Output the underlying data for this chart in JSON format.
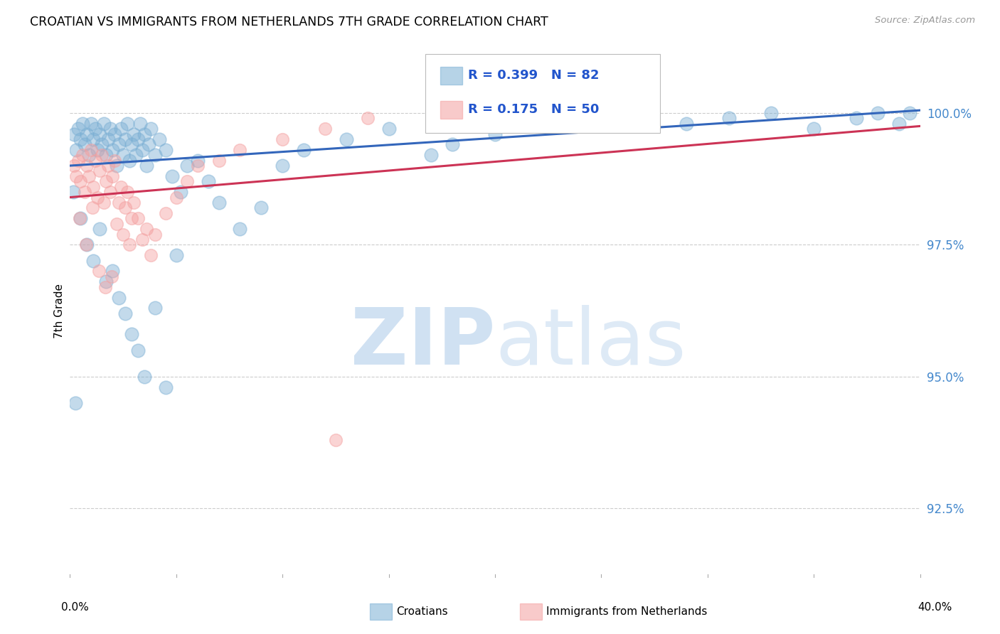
{
  "title": "CROATIAN VS IMMIGRANTS FROM NETHERLANDS 7TH GRADE CORRELATION CHART",
  "source": "Source: ZipAtlas.com",
  "ylabel": "7th Grade",
  "yticks": [
    92.5,
    95.0,
    97.5,
    100.0
  ],
  "ytick_labels": [
    "92.5%",
    "95.0%",
    "97.5%",
    "100.0%"
  ],
  "xmin": 0.0,
  "xmax": 40.0,
  "ymin": 91.2,
  "ymax": 101.3,
  "blue_R": 0.399,
  "blue_N": 82,
  "pink_R": 0.175,
  "pink_N": 50,
  "blue_color": "#7BAFD4",
  "pink_color": "#F4A0A0",
  "blue_line_color": "#3366BB",
  "pink_line_color": "#CC3355",
  "legend_label_blue": "Croatians",
  "legend_label_pink": "Immigrants from Netherlands",
  "blue_scatter_x": [
    0.2,
    0.3,
    0.4,
    0.5,
    0.6,
    0.7,
    0.8,
    0.9,
    1.0,
    1.1,
    1.2,
    1.3,
    1.4,
    1.5,
    1.6,
    1.7,
    1.8,
    1.9,
    2.0,
    2.1,
    2.2,
    2.3,
    2.4,
    2.5,
    2.6,
    2.7,
    2.8,
    2.9,
    3.0,
    3.1,
    3.2,
    3.3,
    3.4,
    3.5,
    3.6,
    3.7,
    3.8,
    4.0,
    4.2,
    4.5,
    4.8,
    5.2,
    5.5,
    6.0,
    6.5,
    7.0,
    8.0,
    9.0,
    10.0,
    11.0,
    13.0,
    15.0,
    17.0,
    18.0,
    20.0,
    22.0,
    25.0,
    27.0,
    29.0,
    31.0,
    33.0,
    35.0,
    37.0,
    38.0,
    39.0,
    39.5,
    0.5,
    0.8,
    1.1,
    1.4,
    1.7,
    2.0,
    2.3,
    2.6,
    2.9,
    3.2,
    3.5,
    4.0,
    4.5,
    5.0,
    0.15,
    0.25
  ],
  "blue_scatter_y": [
    99.6,
    99.3,
    99.7,
    99.5,
    99.8,
    99.4,
    99.6,
    99.2,
    99.8,
    99.5,
    99.7,
    99.3,
    99.6,
    99.4,
    99.8,
    99.2,
    99.5,
    99.7,
    99.3,
    99.6,
    99.0,
    99.4,
    99.7,
    99.2,
    99.5,
    99.8,
    99.1,
    99.4,
    99.6,
    99.2,
    99.5,
    99.8,
    99.3,
    99.6,
    99.0,
    99.4,
    99.7,
    99.2,
    99.5,
    99.3,
    98.8,
    98.5,
    99.0,
    99.1,
    98.7,
    98.3,
    97.8,
    98.2,
    99.0,
    99.3,
    99.5,
    99.7,
    99.2,
    99.4,
    99.6,
    99.8,
    99.9,
    100.0,
    99.8,
    99.9,
    100.0,
    99.7,
    99.9,
    100.0,
    99.8,
    100.0,
    98.0,
    97.5,
    97.2,
    97.8,
    96.8,
    97.0,
    96.5,
    96.2,
    95.8,
    95.5,
    95.0,
    96.3,
    94.8,
    97.3,
    98.5,
    94.5
  ],
  "pink_scatter_x": [
    0.2,
    0.3,
    0.4,
    0.5,
    0.6,
    0.7,
    0.8,
    0.9,
    1.0,
    1.1,
    1.2,
    1.3,
    1.4,
    1.5,
    1.6,
    1.7,
    1.8,
    1.9,
    2.0,
    2.1,
    2.2,
    2.3,
    2.4,
    2.5,
    2.6,
    2.7,
    2.8,
    2.9,
    3.0,
    3.2,
    3.4,
    3.6,
    3.8,
    4.0,
    4.5,
    5.0,
    5.5,
    6.0,
    7.0,
    8.0,
    10.0,
    12.0,
    14.0,
    0.45,
    0.75,
    1.05,
    1.35,
    1.65,
    1.95,
    12.5
  ],
  "pink_scatter_y": [
    99.0,
    98.8,
    99.1,
    98.7,
    99.2,
    98.5,
    99.0,
    98.8,
    99.3,
    98.6,
    99.1,
    98.4,
    98.9,
    99.2,
    98.3,
    98.7,
    99.0,
    98.5,
    98.8,
    99.1,
    97.9,
    98.3,
    98.6,
    97.7,
    98.2,
    98.5,
    97.5,
    98.0,
    98.3,
    98.0,
    97.6,
    97.8,
    97.3,
    97.7,
    98.1,
    98.4,
    98.7,
    99.0,
    99.1,
    99.3,
    99.5,
    99.7,
    99.9,
    98.0,
    97.5,
    98.2,
    97.0,
    96.7,
    96.9,
    93.8
  ]
}
